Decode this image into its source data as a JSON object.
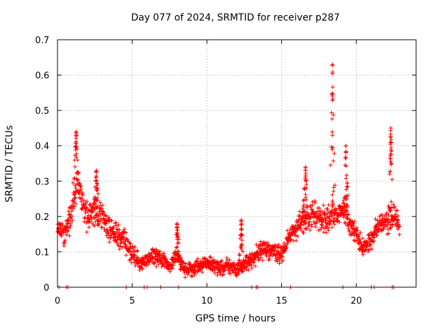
{
  "chart_data": {
    "type": "scatter",
    "title": "Day 077 of 2024, SRMTID for receiver p287",
    "xlabel": "GPS time / hours",
    "ylabel": "SRMTID / TECUs",
    "xlim": [
      0,
      24
    ],
    "ylim": [
      0,
      0.7
    ],
    "xticks": [
      0,
      5,
      10,
      15,
      20
    ],
    "yticks": [
      0,
      0.1,
      0.2,
      0.3,
      0.4,
      0.5,
      0.6,
      0.7
    ],
    "xtick_labels": [
      "0",
      "5",
      "10",
      "15",
      "20"
    ],
    "ytick_labels": [
      "0",
      "0.1",
      "0.2",
      "0.3",
      "0.4",
      "0.5",
      "0.6",
      "0.7"
    ],
    "grid": true,
    "marker": "+",
    "color": "#ff0000",
    "series": [
      {
        "name": "SRMTID",
        "envelope": {
          "x": [
            0,
            0.5,
            1,
            1.3,
            1.6,
            2,
            2.5,
            3,
            3.5,
            4,
            4.5,
            5,
            5.5,
            6,
            6.5,
            7,
            7.5,
            8,
            8.5,
            9,
            9.5,
            10,
            10.5,
            11,
            11.5,
            12,
            12.5,
            13,
            13.5,
            14,
            14.5,
            15,
            15.5,
            16,
            16.5,
            17,
            17.5,
            18,
            18.5,
            19,
            19.5,
            20,
            20.5,
            21,
            21.5,
            22,
            22.5,
            22.9
          ],
          "y": [
            0.17,
            0.15,
            0.22,
            0.3,
            0.25,
            0.2,
            0.22,
            0.2,
            0.16,
            0.15,
            0.13,
            0.09,
            0.07,
            0.08,
            0.09,
            0.08,
            0.06,
            0.09,
            0.05,
            0.05,
            0.06,
            0.07,
            0.06,
            0.05,
            0.06,
            0.05,
            0.06,
            0.08,
            0.1,
            0.11,
            0.1,
            0.09,
            0.14,
            0.17,
            0.19,
            0.21,
            0.2,
            0.19,
            0.2,
            0.22,
            0.18,
            0.15,
            0.11,
            0.14,
            0.18,
            0.19,
            0.2,
            0.18
          ],
          "spread": [
            0.04,
            0.05,
            0.06,
            0.06,
            0.06,
            0.06,
            0.07,
            0.06,
            0.05,
            0.05,
            0.05,
            0.04,
            0.03,
            0.03,
            0.04,
            0.03,
            0.03,
            0.03,
            0.03,
            0.03,
            0.03,
            0.03,
            0.03,
            0.03,
            0.03,
            0.03,
            0.03,
            0.03,
            0.04,
            0.04,
            0.04,
            0.04,
            0.04,
            0.05,
            0.05,
            0.05,
            0.05,
            0.05,
            0.05,
            0.05,
            0.05,
            0.05,
            0.04,
            0.04,
            0.04,
            0.05,
            0.05,
            0.05
          ]
        },
        "peaks": [
          {
            "x": 1.25,
            "y": 0.44
          },
          {
            "x": 2.6,
            "y": 0.33
          },
          {
            "x": 8.0,
            "y": 0.18
          },
          {
            "x": 12.3,
            "y": 0.19
          },
          {
            "x": 16.6,
            "y": 0.34
          },
          {
            "x": 18.4,
            "y": 0.63
          },
          {
            "x": 19.3,
            "y": 0.4
          },
          {
            "x": 22.3,
            "y": 0.45
          }
        ],
        "zero_points_x": [
          0.1,
          0.6,
          0.7,
          4.6,
          5.8,
          6.0,
          6.9,
          8.1,
          13.0,
          13.3,
          13.4,
          15.6,
          19.1,
          21.0,
          21.2,
          22.4,
          22.5
        ]
      }
    ]
  }
}
